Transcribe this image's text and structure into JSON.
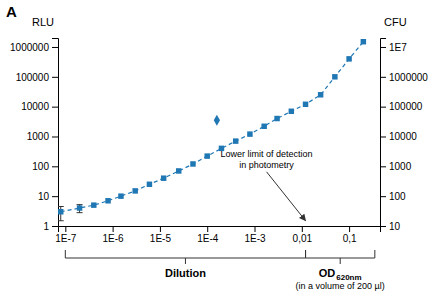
{
  "chart_data": {
    "type": "line",
    "title": "A",
    "ylabel": "RLU",
    "y2label": "CFU",
    "log": true,
    "xlim": [
      7e-08,
      0.45
    ],
    "ylim": [
      1,
      2000000
    ],
    "y2lim": [
      10,
      20000000.0
    ],
    "xticks": [
      {
        "value": 1e-07,
        "label": "1E-7"
      },
      {
        "value": 1e-06,
        "label": "1E-6"
      },
      {
        "value": 1e-05,
        "label": "1E-5"
      },
      {
        "value": 0.0001,
        "label": "1E-4"
      },
      {
        "value": 0.001,
        "label": "1E-3"
      },
      {
        "value": 0.01,
        "label": "0,01"
      },
      {
        "value": 0.1,
        "label": "0,1"
      }
    ],
    "yticks": [
      1,
      10,
      100,
      1000,
      10000,
      100000,
      1000000
    ],
    "y2ticks": [
      10,
      100,
      1000,
      10000,
      100000,
      1000000,
      {
        "value": 10000000,
        "label": "1E7"
      }
    ],
    "series": [
      {
        "type": "line",
        "marker": "square",
        "line_style": "dashed",
        "x": [
          8e-08,
          2e-07,
          4e-07,
          8e-07,
          1.5e-06,
          3e-06,
          6e-06,
          1.2e-05,
          2.5e-05,
          5e-05,
          0.0001,
          0.0002,
          0.0004,
          0.0008,
          0.0016,
          0.003,
          0.006,
          0.012,
          0.025,
          0.05,
          0.1,
          0.2
        ],
        "values": [
          3,
          4,
          5,
          7,
          10,
          15,
          25,
          40,
          70,
          120,
          220,
          400,
          700,
          1200,
          2200,
          4000,
          7000,
          12000,
          25000,
          100000,
          400000,
          1500000
        ],
        "errors": [
          1.5,
          1.2,
          null,
          null,
          null,
          null,
          null,
          null,
          null,
          null,
          null,
          null,
          null,
          null,
          null,
          null,
          null,
          null,
          null,
          null,
          null,
          null
        ]
      },
      {
        "type": "scatter",
        "marker": "diamond",
        "x": [
          0.00016
        ],
        "values": [
          3500
        ]
      }
    ],
    "annotations": [
      {
        "text": "Lower limit of detection\nin photometry",
        "x": 0.012,
        "y": 1.5,
        "text_x": 0.0018,
        "text_y": 200
      }
    ],
    "x_groups": [
      {
        "label": "Dilution",
        "range": [
          1e-07,
          0.012
        ]
      },
      {
        "label": "OD",
        "label_subscript": "620nm",
        "note": "(in a volume of 200 µl)",
        "range": [
          0.012,
          0.35
        ]
      }
    ]
  }
}
